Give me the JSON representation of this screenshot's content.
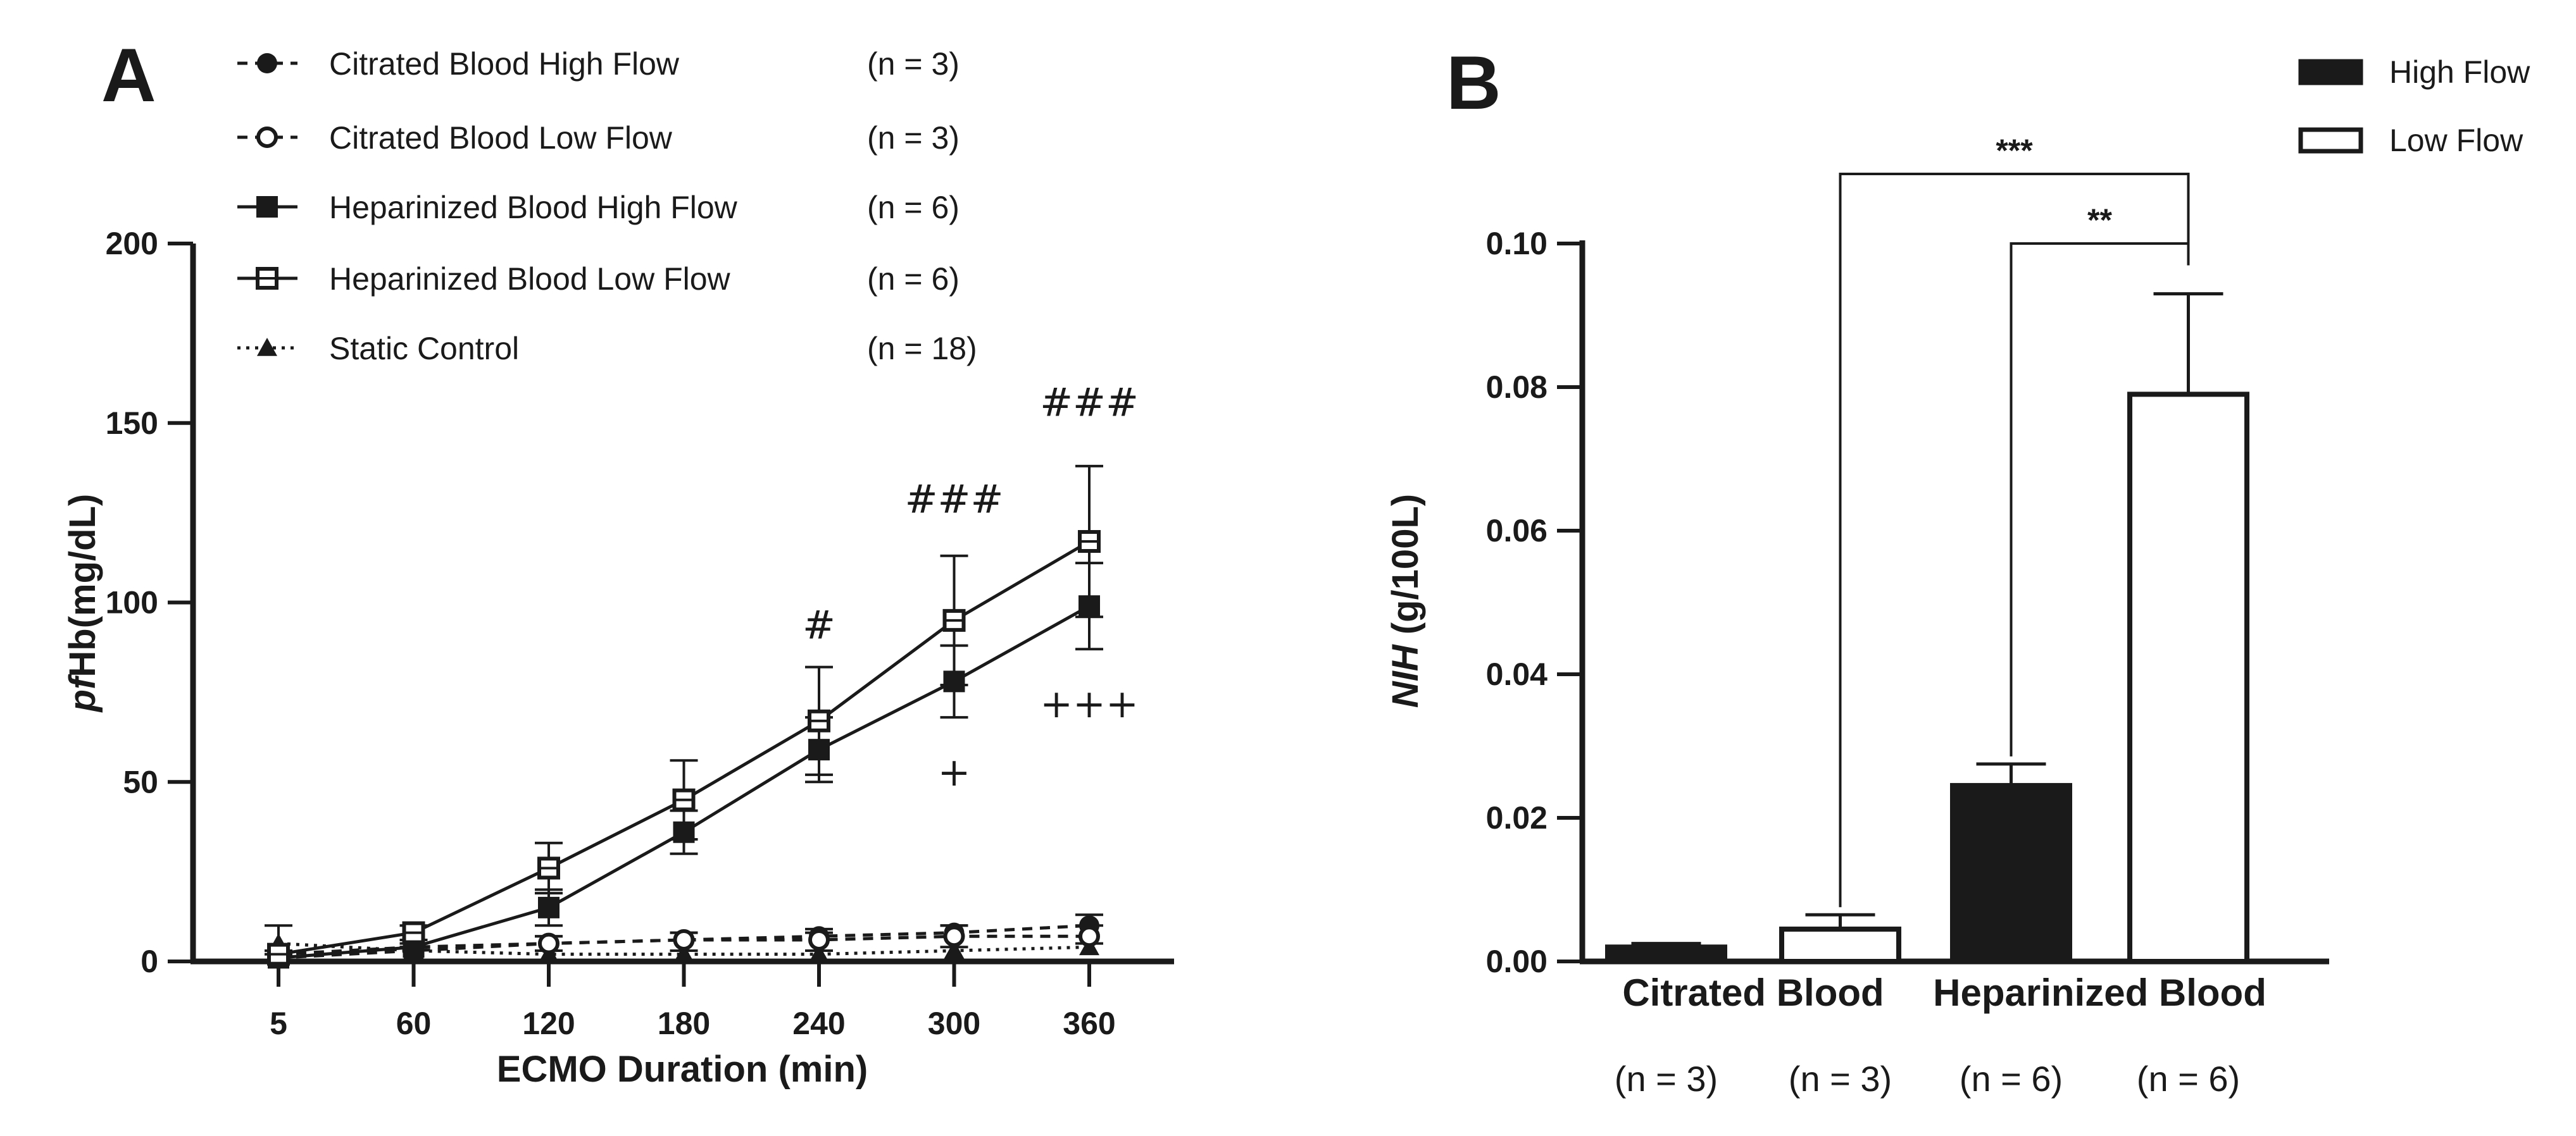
{
  "chart_data": [
    {
      "panel": "A",
      "type": "line",
      "xlabel": "ECMO Duration (min)",
      "ylabel_italic": "pf",
      "ylabel_rest": "Hb(mg/dL)",
      "categories": [
        "5",
        "60",
        "120",
        "180",
        "240",
        "300",
        "360"
      ],
      "yticks": [
        "0",
        "50",
        "100",
        "150",
        "200"
      ],
      "ylim": [
        0,
        200
      ],
      "series": [
        {
          "name": "Citrated Blood High Flow",
          "n": "(n = 3)",
          "marker": "filled-circle",
          "line": "dashed",
          "values": [
            1,
            3,
            5,
            6,
            7,
            8,
            10
          ],
          "errors": [
            1,
            1,
            2,
            2,
            2,
            2,
            3
          ]
        },
        {
          "name": "Citrated Blood Low Flow",
          "n": "(n = 3)",
          "marker": "open-circle",
          "line": "dashed",
          "values": [
            2,
            4,
            5,
            6,
            6,
            7,
            7
          ],
          "errors": [
            1,
            1,
            2,
            2,
            2,
            3,
            3
          ]
        },
        {
          "name": "Heparinized Blood High Flow",
          "n": "(n = 6)",
          "marker": "filled-square",
          "line": "solid",
          "values": [
            1,
            4,
            15,
            36,
            59,
            78,
            99
          ],
          "errors": [
            1,
            2,
            5,
            6,
            9,
            10,
            12
          ]
        },
        {
          "name": "Heparinized Blood Low Flow",
          "n": "(n = 6)",
          "marker": "open-square",
          "line": "solid",
          "values": [
            2,
            8,
            26,
            45,
            67,
            95,
            117
          ],
          "errors": [
            1,
            2,
            7,
            11,
            15,
            18,
            21
          ]
        },
        {
          "name": "Static Control",
          "n": "(n = 18)",
          "marker": "filled-triangle",
          "line": "dotted",
          "values": [
            5,
            3,
            2,
            2,
            2,
            3,
            4
          ],
          "errors": [
            5,
            1,
            1,
            1,
            1,
            1,
            1
          ]
        }
      ],
      "annotations": [
        {
          "text": "#",
          "x": "240",
          "y": 90
        },
        {
          "text": "###",
          "x": "300",
          "y": 125
        },
        {
          "text": "###",
          "x": "360",
          "y": 152
        },
        {
          "text": "+",
          "x": "300",
          "y": 49
        },
        {
          "text": "+++",
          "x": "360",
          "y": 68
        }
      ]
    },
    {
      "panel": "B",
      "type": "bar",
      "ylabel_italic": "NIH",
      "ylabel_rest": " (g/100L)",
      "groups": [
        "Citrated Blood",
        "Heparinized Blood"
      ],
      "yticks": [
        "0.00",
        "0.02",
        "0.04",
        "0.06",
        "0.08",
        "0.10"
      ],
      "ylim": [
        0,
        0.1
      ],
      "legend": [
        "High Flow",
        "Low Flow"
      ],
      "bars": [
        {
          "group": "Citrated Blood",
          "series": "High Flow",
          "value": 0.002,
          "error": 0.0005,
          "n": "(n = 3)"
        },
        {
          "group": "Citrated Blood",
          "series": "Low Flow",
          "value": 0.0045,
          "error": 0.002,
          "n": "(n = 3)"
        },
        {
          "group": "Heparinized Blood",
          "series": "High Flow",
          "value": 0.0245,
          "error": 0.003,
          "n": "(n = 6)"
        },
        {
          "group": "Heparinized Blood",
          "series": "Low Flow",
          "value": 0.079,
          "error": 0.014,
          "n": "(n = 6)"
        }
      ],
      "significance": [
        {
          "label": "***",
          "from_bar": 1,
          "to_bar": 3
        },
        {
          "label": "**",
          "from_bar": 2,
          "to_bar": 3
        }
      ]
    }
  ]
}
